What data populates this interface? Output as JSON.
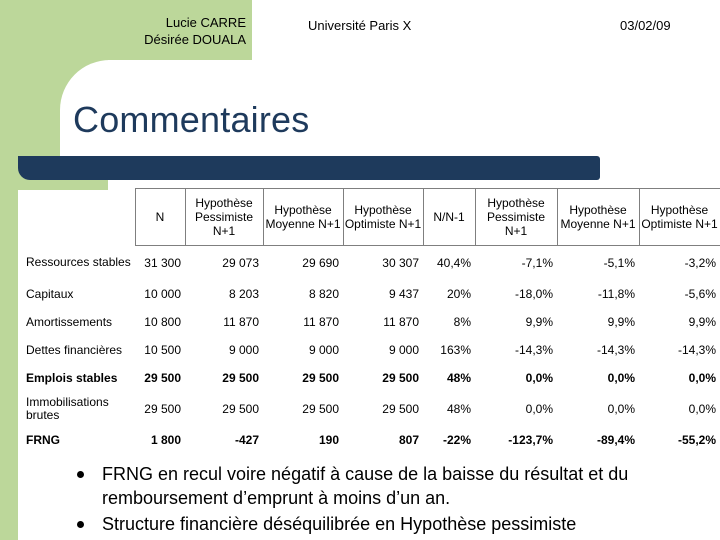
{
  "header": {
    "author_line1": "Lucie CARRE",
    "author_line2": "Désirée DOUALA",
    "university": "Université Paris X",
    "date": "03/02/09"
  },
  "title": "Commentaires",
  "colors": {
    "accent_green": "#bcd79a",
    "title_navy": "#1e3a5c"
  },
  "table": {
    "headers": [
      "N",
      "Hypothèse Pessimiste N+1",
      "Hypothèse Moyenne N+1",
      "Hypothèse Optimiste N+1",
      "N/N-1",
      "Hypothèse Pessimiste N+1",
      "Hypothèse Moyenne N+1",
      "Hypothèse Optimiste N+1"
    ],
    "rows": [
      {
        "label": "Ressources stables",
        "cells": [
          "31 300",
          "29 073",
          "29 690",
          "30 307",
          "40,4%",
          "-7,1%",
          "-5,1%",
          "-3,2%"
        ]
      },
      {
        "label": "Capitaux",
        "cells": [
          "10 000",
          "8 203",
          "8 820",
          "9 437",
          "20%",
          "-18,0%",
          "-11,8%",
          "-5,6%"
        ]
      },
      {
        "label": "Amortissements",
        "cells": [
          "10 800",
          "11 870",
          "11 870",
          "11 870",
          "8%",
          "9,9%",
          "9,9%",
          "9,9%"
        ]
      },
      {
        "label": "Dettes financières",
        "cells": [
          "10 500",
          "9 000",
          "9 000",
          "9 000",
          "163%",
          "-14,3%",
          "-14,3%",
          "-14,3%"
        ]
      },
      {
        "label": "Emplois stables",
        "cells": [
          "29 500",
          "29 500",
          "29 500",
          "29 500",
          "48%",
          "0,0%",
          "0,0%",
          "0,0%"
        ]
      },
      {
        "label": "Immobilisations brutes",
        "cells": [
          "29 500",
          "29 500",
          "29 500",
          "29 500",
          "48%",
          "0,0%",
          "0,0%",
          "0,0%"
        ]
      },
      {
        "label": "FRNG",
        "cells": [
          "1 800",
          "-427",
          "190",
          "807",
          "-22%",
          "-123,7%",
          "-89,4%",
          "-55,2%"
        ]
      }
    ]
  },
  "bullets": [
    "FRNG en recul voire négatif à cause de la baisse du résultat et du remboursement d’emprunt à moins d’un an.",
    "Structure financière déséquilibrée en Hypothèse pessimiste"
  ]
}
